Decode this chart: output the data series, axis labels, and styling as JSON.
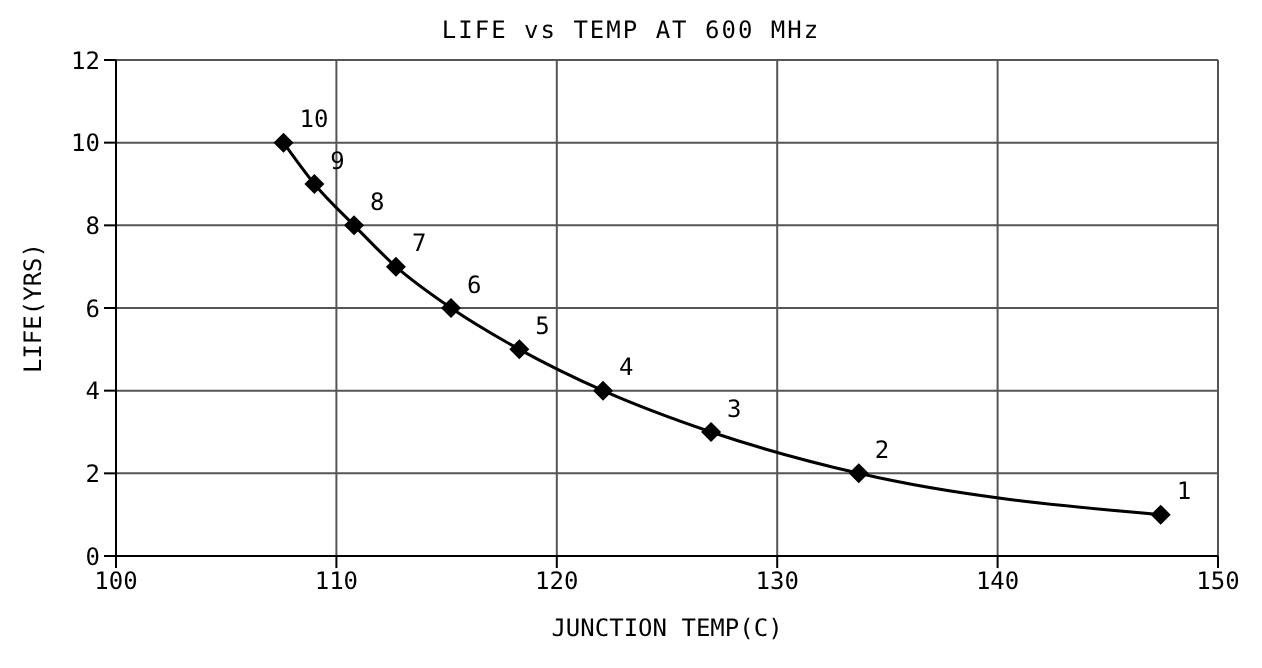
{
  "chart_data": {
    "type": "line",
    "title": "LIFE vs TEMP AT 600 MHz",
    "xlabel": "JUNCTION TEMP(C)",
    "ylabel": "LIFE(YRS)",
    "x": [
      107.6,
      109.0,
      110.8,
      112.7,
      115.2,
      118.3,
      122.1,
      127.0,
      133.7,
      147.4
    ],
    "series": [
      {
        "color": "#000000",
        "values": [
          10,
          9,
          8,
          7,
          6,
          5,
          4,
          3,
          2,
          1
        ]
      }
    ],
    "annotations": [
      {
        "text": "10",
        "x": 107.6,
        "y": 10
      },
      {
        "text": "9",
        "x": 109.0,
        "y": 9
      },
      {
        "text": "8",
        "x": 110.8,
        "y": 8
      },
      {
        "text": "7",
        "x": 112.7,
        "y": 7
      },
      {
        "text": "6",
        "x": 115.2,
        "y": 6
      },
      {
        "text": "5",
        "x": 118.3,
        "y": 5
      },
      {
        "text": "4",
        "x": 122.1,
        "y": 4
      },
      {
        "text": "3",
        "x": 127.0,
        "y": 3
      },
      {
        "text": "2",
        "x": 133.7,
        "y": 2
      },
      {
        "text": "1",
        "x": 147.4,
        "y": 1
      }
    ],
    "xlim": [
      100,
      150
    ],
    "xticks": [
      100,
      110,
      120,
      130,
      140,
      150
    ],
    "ylim": [
      0,
      12
    ],
    "yticks": [
      0,
      2,
      4,
      6,
      8,
      10,
      12
    ],
    "grid": true,
    "marker": "diamond",
    "line_style": "solid"
  }
}
